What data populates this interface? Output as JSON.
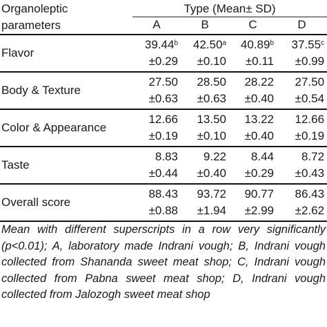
{
  "table": {
    "param_header_line1": "Organoleptic",
    "param_header_line2": "parameters",
    "type_header": "Type (Mean± SD)",
    "columns": [
      "A",
      "B",
      "C",
      "D"
    ],
    "rows": [
      {
        "parameter": "Flavor",
        "means": [
          "39.44",
          "42.50",
          "40.89",
          "37.55"
        ],
        "sups": [
          "b",
          "a",
          "b",
          "c"
        ],
        "sds": [
          "±0.29",
          "±0.10",
          "±0.11",
          "±0.99"
        ]
      },
      {
        "parameter": "Body & Texture",
        "means": [
          "27.50",
          "28.50",
          "28.22",
          "27.50"
        ],
        "sups": [
          "",
          "",
          "",
          ""
        ],
        "sds": [
          "±0.63",
          "±0.63",
          "±0.40",
          "±0.54"
        ]
      },
      {
        "parameter": "Color & Appearance",
        "means": [
          "12.66",
          "13.50",
          "13.22",
          "12.66"
        ],
        "sups": [
          "",
          "",
          "",
          ""
        ],
        "sds": [
          "±0.19",
          "±0.10",
          "±0.40",
          "±0.19"
        ]
      },
      {
        "parameter": "Taste",
        "means": [
          "8.83",
          "9.22",
          "8.44",
          "8.72"
        ],
        "sups": [
          "",
          "",
          "",
          ""
        ],
        "sds": [
          "±0.44",
          "±0.40",
          "±0.29",
          "±0.43"
        ]
      },
      {
        "parameter": "Overall score",
        "means": [
          "88.43",
          "93.72",
          "90.77",
          "86.43"
        ],
        "sups": [
          "",
          "",
          "",
          ""
        ],
        "sds": [
          "±0.88",
          "±1.94",
          "±2.99",
          "±2.62"
        ]
      }
    ]
  },
  "footnote": "Mean with different superscripts in a row very significantly (p<0.01); A, laboratory made Indrani vough; B, Indrani vough collected from Shananda sweet meat shop; C, Indrani vough collected from Pabna sweet meat shop; D, Indrani vough collected from Jalozogh sweet meat shop"
}
